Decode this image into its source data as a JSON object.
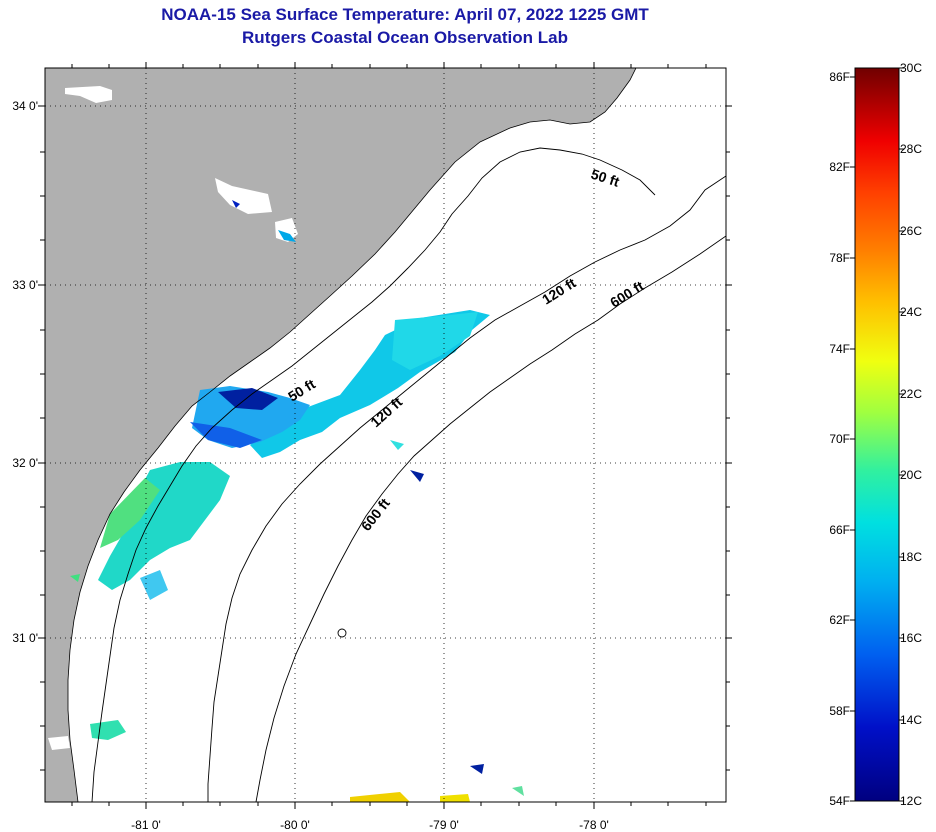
{
  "title": "NOAA-15 Sea Surface Temperature:  April 07, 2022 1225 GMT",
  "subtitle": "Rutgers Coastal Ocean Observation Lab",
  "map": {
    "lat_labels": [
      "34 0'",
      "33 0'",
      "32 0'",
      "31 0'"
    ],
    "lon_labels": [
      "-81 0'",
      "-80 0'",
      "-79 0'",
      "-78 0'"
    ],
    "contours": [
      {
        "label": "50 ft"
      },
      {
        "label": "50 ft"
      },
      {
        "label": "120 ft"
      },
      {
        "label": "120 ft"
      },
      {
        "label": "600 ft"
      },
      {
        "label": "600 ft"
      }
    ],
    "land_color": "#b0b0b0",
    "ocean_color": "#ffffff"
  },
  "colorbar": {
    "fahrenheit_labels": [
      "86F",
      "82F",
      "78F",
      "74F",
      "70F",
      "66F",
      "62F",
      "58F",
      "54F"
    ],
    "celsius_labels": [
      "30C",
      "28C",
      "26C",
      "24C",
      "22C",
      "20C",
      "18C",
      "16C",
      "14C",
      "12C"
    ],
    "colors": [
      "#7a0000",
      "#c80000",
      "#ff2000",
      "#ff7000",
      "#ffb000",
      "#ffe800",
      "#c8ff30",
      "#60ff80",
      "#20e8c0",
      "#00c8e8",
      "#0090f0",
      "#0050e0",
      "#0010c0",
      "#000080"
    ]
  }
}
